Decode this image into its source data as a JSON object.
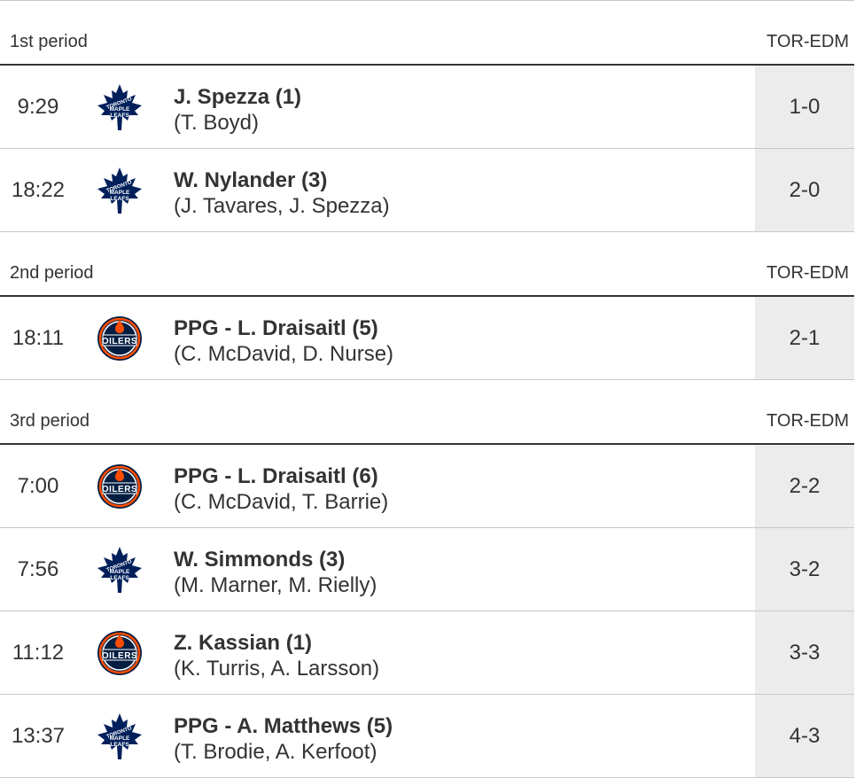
{
  "periods": [
    {
      "label": "1st period",
      "score_header": "TOR-EDM",
      "goals": [
        {
          "time": "9:29",
          "team": "toronto-maple-leafs",
          "scorer": "J. Spezza (1)",
          "assists": "(T. Boyd)",
          "score": "1-0"
        },
        {
          "time": "18:22",
          "team": "toronto-maple-leafs",
          "scorer": "W. Nylander (3)",
          "assists": "(J. Tavares, J. Spezza)",
          "score": "2-0"
        }
      ]
    },
    {
      "label": "2nd period",
      "score_header": "TOR-EDM",
      "goals": [
        {
          "time": "18:11",
          "team": "edmonton-oilers",
          "scorer": "PPG - L. Draisaitl (5)",
          "assists": "(C. McDavid, D. Nurse)",
          "score": "2-1"
        }
      ]
    },
    {
      "label": "3rd period",
      "score_header": "TOR-EDM",
      "goals": [
        {
          "time": "7:00",
          "team": "edmonton-oilers",
          "scorer": "PPG - L. Draisaitl (6)",
          "assists": "(C. McDavid, T. Barrie)",
          "score": "2-2"
        },
        {
          "time": "7:56",
          "team": "toronto-maple-leafs",
          "scorer": "W. Simmonds (3)",
          "assists": "(M. Marner, M. Rielly)",
          "score": "3-2"
        },
        {
          "time": "11:12",
          "team": "edmonton-oilers",
          "scorer": "Z. Kassian (1)",
          "assists": "(K. Turris, A. Larsson)",
          "score": "3-3"
        },
        {
          "time": "13:37",
          "team": "toronto-maple-leafs",
          "scorer": "PPG - A. Matthews (5)",
          "assists": "(T. Brodie, A. Kerfoot)",
          "score": "4-3"
        }
      ]
    }
  ],
  "logos": {
    "toronto-maple-leafs": {
      "icon": "maple-leaf-icon",
      "color": "#00205b",
      "text": [
        "TORONTO",
        "MAPLE",
        "LEAFS"
      ]
    },
    "edmonton-oilers": {
      "icon": "oilers-icon",
      "color": "#041e42",
      "accent": "#fc4c02",
      "text": [
        "OILERS"
      ]
    }
  }
}
